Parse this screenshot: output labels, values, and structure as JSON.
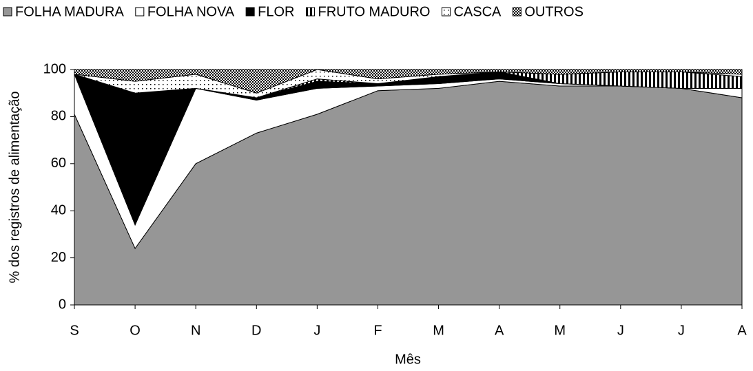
{
  "chart_data": {
    "type": "stacked-area",
    "xlabel": "Mês",
    "ylabel": "% dos registros de alimentação",
    "categories": [
      "S",
      "O",
      "N",
      "D",
      "J",
      "F",
      "M",
      "A",
      "M",
      "J",
      "J",
      "A"
    ],
    "ylim": [
      0,
      100
    ],
    "yticks": [
      0,
      20,
      40,
      60,
      80,
      100
    ],
    "legend": "top",
    "series": [
      {
        "name": "FOLHA MADURA",
        "color": "#969696",
        "pattern": "solid",
        "values": [
          81,
          24,
          60,
          73,
          81,
          91,
          92,
          95,
          93,
          93,
          92,
          88
        ]
      },
      {
        "name": "FOLHA NOVA",
        "color": "#ffffff",
        "pattern": "solid",
        "values": [
          17,
          10,
          32,
          14,
          11,
          2,
          2,
          1,
          1,
          0,
          0,
          4
        ]
      },
      {
        "name": "FLOR",
        "color": "#000000",
        "pattern": "solid",
        "values": [
          0,
          56,
          0,
          1,
          3,
          1,
          3,
          3,
          0,
          0,
          0,
          0
        ]
      },
      {
        "name": "FRUTO MADURO",
        "color": "#000000",
        "pattern": "vertical-stripes",
        "values": [
          0,
          0,
          0,
          0,
          1,
          0,
          0,
          0,
          4,
          6,
          7,
          5
        ]
      },
      {
        "name": "CASCA",
        "color": "#000000",
        "pattern": "dots",
        "values": [
          0,
          5,
          6,
          2,
          4,
          2,
          1,
          0,
          0,
          0,
          0,
          1
        ]
      },
      {
        "name": "OUTROS",
        "color": "#000000",
        "pattern": "checker",
        "values": [
          2,
          5,
          2,
          10,
          0,
          4,
          2,
          1,
          2,
          1,
          1,
          2
        ]
      }
    ]
  }
}
